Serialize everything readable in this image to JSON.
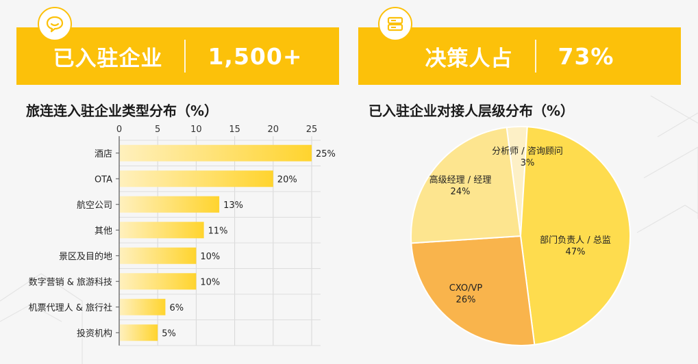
{
  "banners": {
    "left": {
      "label": "已入驻企业",
      "value": "1,500+",
      "icon": "chat-bubble-icon"
    },
    "right": {
      "label": "决策人占",
      "value": "73%",
      "icon": "server-stack-icon"
    }
  },
  "colors": {
    "brand_yellow": "#fcc10a",
    "bar_light": "#fff0bd",
    "bar_dark": "#ffd42e",
    "pie_slices": [
      "#fdf0c6",
      "#fedc4e",
      "#f9b44c",
      "#fde58f"
    ]
  },
  "chart_data": [
    {
      "type": "bar",
      "orientation": "horizontal",
      "title": "旅连连入驻企业类型分布（%）",
      "categories": [
        "酒店",
        "OTA",
        "航空公司",
        "其他",
        "景区及目的地",
        "数字营销 & 旅游科技",
        "机票代理人 & 旅行社",
        "投资机构"
      ],
      "values": [
        25,
        20,
        13,
        11,
        10,
        10,
        6,
        5
      ],
      "value_labels": [
        "25%",
        "20%",
        "13%",
        "11%",
        "10%",
        "10%",
        "6%",
        "5%"
      ],
      "xlim": [
        0,
        25
      ],
      "x_ticks": [
        0,
        5,
        10,
        15,
        20,
        25
      ],
      "x_axis_position": "top",
      "grid": true
    },
    {
      "type": "pie",
      "title": "已入驻企业对接人层级分布（%）",
      "slices": [
        {
          "label": "分析师 / 咨询顾问",
          "value": 3,
          "value_label": "3%"
        },
        {
          "label": "部门负责人 / 总监",
          "value": 47,
          "value_label": "47%"
        },
        {
          "label": "CXO/VP",
          "value": 26,
          "value_label": "26%"
        },
        {
          "label": "高级经理 / 经理",
          "value": 24,
          "value_label": "24%"
        }
      ]
    }
  ]
}
